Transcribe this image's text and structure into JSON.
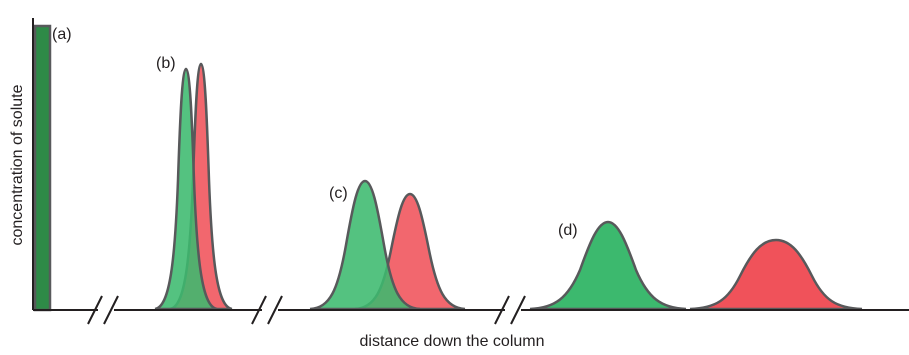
{
  "diagram": {
    "labels": {
      "a": "(a)",
      "b": "(b)",
      "c": "(c)",
      "d": "(d)"
    },
    "x_axis_label": "distance down the column",
    "y_axis_label": "concentration of solute",
    "colors": {
      "green": "#3cb96e",
      "red": "#f0525a",
      "dark_green": "#2e8a47",
      "outline": "#58595b",
      "axis": "#231f20"
    }
  }
}
